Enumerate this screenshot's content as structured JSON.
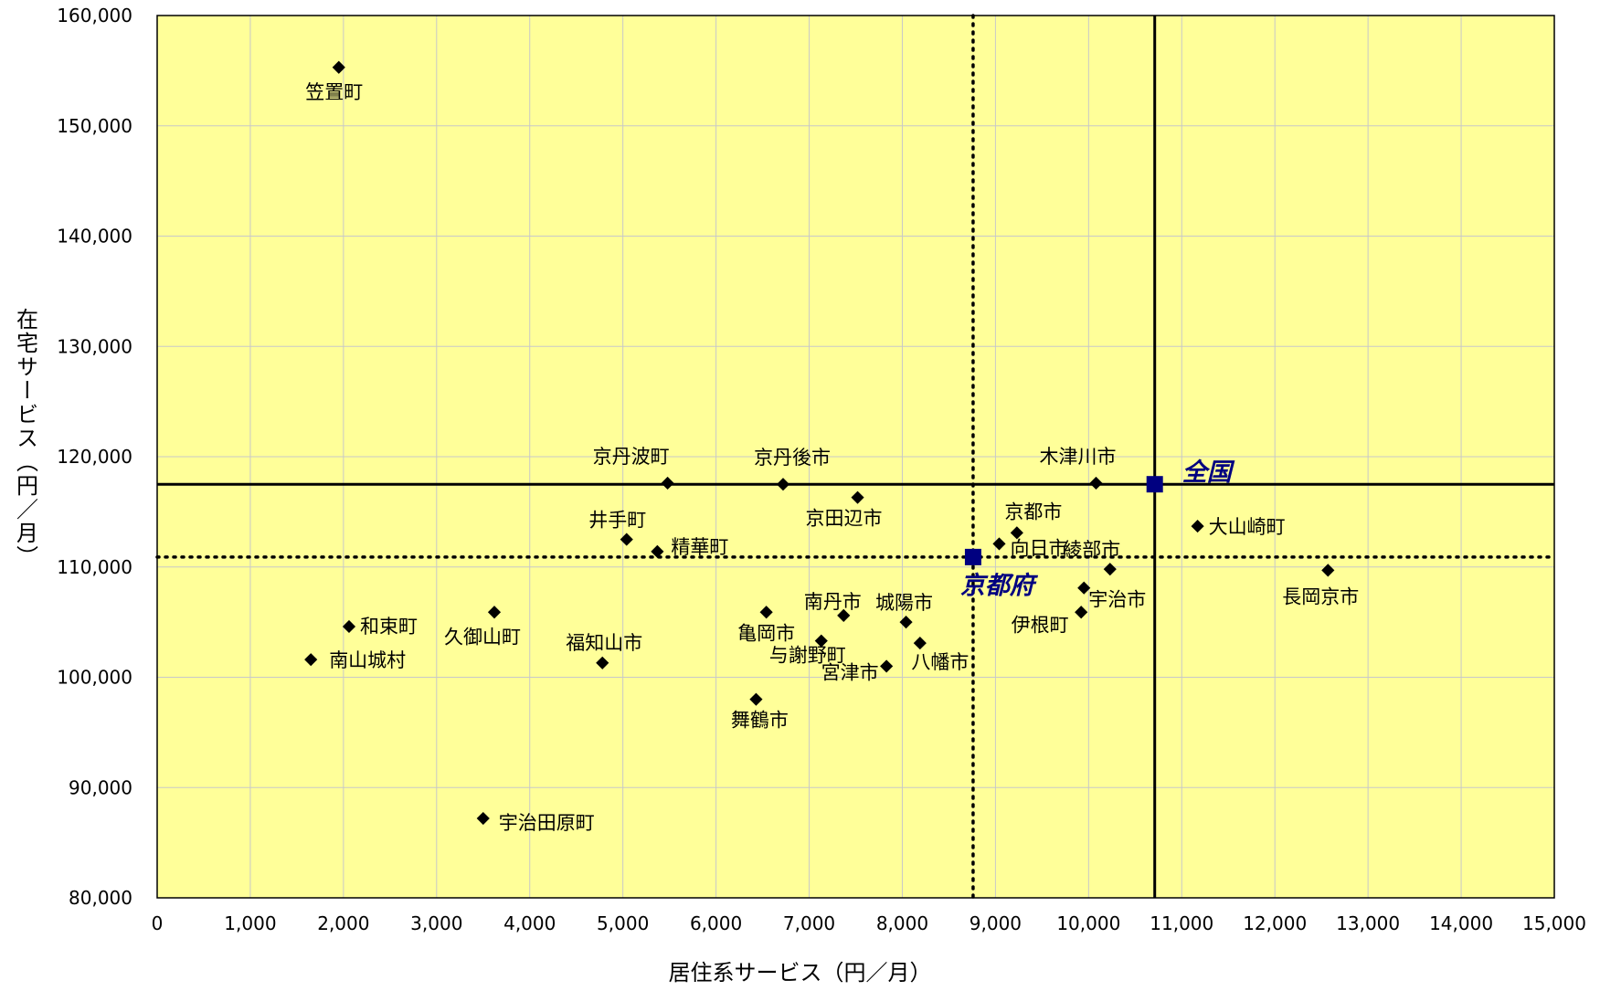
{
  "chart_data": {
    "type": "scatter",
    "title": "",
    "xlabel": "居住系サービス（円／月）",
    "ylabel": "在宅サービス（円／月）",
    "xlim": [
      0,
      15000
    ],
    "ylim": [
      80000,
      160000
    ],
    "x_ticks": [
      0,
      1000,
      2000,
      3000,
      4000,
      5000,
      6000,
      7000,
      8000,
      9000,
      10000,
      11000,
      12000,
      13000,
      14000,
      15000
    ],
    "x_tick_labels": [
      "0",
      "1,000",
      "2,000",
      "3,000",
      "4,000",
      "5,000",
      "6,000",
      "7,000",
      "8,000",
      "9,000",
      "10,000",
      "11,000",
      "12,000",
      "13,000",
      "14,000",
      "15,000"
    ],
    "y_ticks": [
      80000,
      90000,
      100000,
      110000,
      120000,
      130000,
      140000,
      150000,
      160000
    ],
    "y_tick_labels": [
      "80,000",
      "90,000",
      "100,000",
      "110,000",
      "120,000",
      "130,000",
      "140,000",
      "150,000",
      "160,000"
    ],
    "grid": true,
    "plot_background": "#ffff99",
    "grid_color": "#c8c8c8",
    "point_color": "#000000",
    "reference_color": "#000080",
    "points": [
      {
        "label": "笠置町",
        "x": 1950,
        "y": 155300
      },
      {
        "label": "京丹波町",
        "x": 5480,
        "y": 117600
      },
      {
        "label": "京丹後市",
        "x": 6720,
        "y": 117500
      },
      {
        "label": "木津川市",
        "x": 10080,
        "y": 117600
      },
      {
        "label": "京田辺市",
        "x": 7520,
        "y": 116300
      },
      {
        "label": "京都市",
        "x": 9230,
        "y": 113100
      },
      {
        "label": "大山崎町",
        "x": 11170,
        "y": 113700
      },
      {
        "label": "井手町",
        "x": 5040,
        "y": 112500
      },
      {
        "label": "向日市",
        "x": 9040,
        "y": 112100
      },
      {
        "label": "精華町",
        "x": 5370,
        "y": 111400
      },
      {
        "label": "綾部市",
        "x": 10230,
        "y": 109800
      },
      {
        "label": "長岡京市",
        "x": 12570,
        "y": 109700
      },
      {
        "label": "宇治市",
        "x": 9950,
        "y": 108100
      },
      {
        "label": "伊根町",
        "x": 9920,
        "y": 105900
      },
      {
        "label": "和束町",
        "x": 2060,
        "y": 104600
      },
      {
        "label": "久御山町",
        "x": 3620,
        "y": 105900
      },
      {
        "label": "亀岡市",
        "x": 6540,
        "y": 105900
      },
      {
        "label": "南丹市",
        "x": 7370,
        "y": 105600
      },
      {
        "label": "城陽市",
        "x": 8040,
        "y": 105000
      },
      {
        "label": "与謝野町",
        "x": 7130,
        "y": 103300
      },
      {
        "label": "八幡市",
        "x": 8190,
        "y": 103100
      },
      {
        "label": "南山城村",
        "x": 1650,
        "y": 101600
      },
      {
        "label": "福知山市",
        "x": 4780,
        "y": 101300
      },
      {
        "label": "宮津市",
        "x": 7830,
        "y": 101000
      },
      {
        "label": "舞鶴市",
        "x": 6430,
        "y": 98000
      },
      {
        "label": "宇治田原町",
        "x": 3500,
        "y": 87200
      }
    ],
    "reference_points": [
      {
        "label": "全国",
        "x": 10710,
        "y": 117500
      },
      {
        "label": "京都府",
        "x": 8760,
        "y": 110900
      }
    ],
    "reference_lines": [
      {
        "orientation": "vertical",
        "style": "solid",
        "value": 10710
      },
      {
        "orientation": "horizontal",
        "style": "solid",
        "value": 117500
      },
      {
        "orientation": "vertical",
        "style": "dotted",
        "value": 8760
      },
      {
        "orientation": "horizontal",
        "style": "dotted",
        "value": 110900
      }
    ]
  }
}
